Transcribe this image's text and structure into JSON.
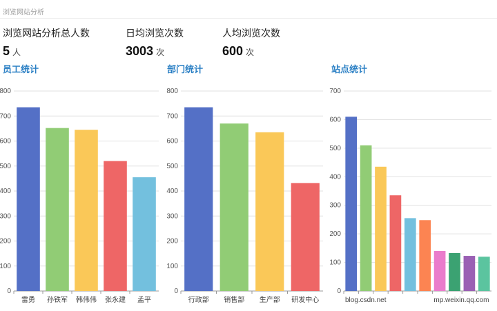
{
  "page": {
    "title": "浏览网站分析"
  },
  "stats": [
    {
      "label": "浏览网站分析总人数",
      "value": "5",
      "unit": "人"
    },
    {
      "label": "日均浏览次数",
      "value": "3003",
      "unit": "次"
    },
    {
      "label": "人均浏览次数",
      "value": "600",
      "unit": "次"
    }
  ],
  "chart_data": [
    {
      "type": "bar",
      "title": "员工统计",
      "ylim": [
        0,
        800
      ],
      "yticks": [
        "0",
        "100",
        "200",
        "300",
        "400",
        "500",
        "600",
        "700",
        "800"
      ],
      "yticks_visible": [
        "0",
        "",
        "",
        "",
        "",
        "",
        "",
        "",
        ""
      ],
      "categories": [
        "雷勇",
        "孙铁军",
        "韩伟伟",
        "张永建",
        "孟平"
      ],
      "values": [
        735,
        652,
        645,
        520,
        455
      ],
      "colors": [
        "#5470c6",
        "#91cc75",
        "#fac858",
        "#ee6666",
        "#73c0de"
      ]
    },
    {
      "type": "bar",
      "title": "部门统计",
      "ylim": [
        0,
        800
      ],
      "yticks": [
        "0",
        "100",
        "200",
        "300",
        "400",
        "500",
        "600",
        "700",
        "800"
      ],
      "categories": [
        "行政部",
        "销售部",
        "生产部",
        "研发中心"
      ],
      "values": [
        735,
        670,
        635,
        432
      ],
      "colors": [
        "#5470c6",
        "#91cc75",
        "#fac858",
        "#ee6666"
      ]
    },
    {
      "type": "bar",
      "title": "站点统计",
      "ylim": [
        0,
        700
      ],
      "yticks": [
        "0",
        "100",
        "200",
        "300",
        "400",
        "500",
        "600",
        "700"
      ],
      "categories": [
        "blog.csdn.net",
        "",
        "",
        "",
        "",
        "",
        "mp.weixin.qq.com",
        "",
        "",
        ""
      ],
      "values": [
        610,
        510,
        435,
        335,
        255,
        248,
        140,
        133,
        123,
        120
      ],
      "colors": [
        "#5470c6",
        "#91cc75",
        "#fac858",
        "#ee6666",
        "#73c0de",
        "#fc8452",
        "#ea7ccc",
        "#3ba272",
        "#9a60b4",
        "#5bc49f"
      ]
    }
  ]
}
